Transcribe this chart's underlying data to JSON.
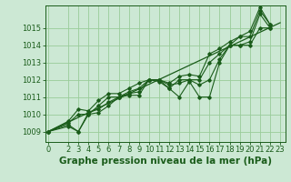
{
  "title": "Graphe pression niveau de la mer (hPa)",
  "bg_color": "#cce8d4",
  "grid_color": "#99cc99",
  "line_color": "#1a5c1a",
  "x_ticks": [
    0,
    2,
    3,
    4,
    5,
    6,
    7,
    8,
    9,
    10,
    11,
    12,
    13,
    14,
    15,
    16,
    17,
    18,
    19,
    20,
    21,
    22,
    23
  ],
  "y_ticks": [
    1009,
    1010,
    1011,
    1012,
    1013,
    1014,
    1015
  ],
  "ylim": [
    1008.4,
    1016.3
  ],
  "xlim": [
    -0.3,
    23.5
  ],
  "series": [
    [
      1009.0,
      null,
      1009.3,
      1009.0,
      1010.0,
      1010.1,
      1010.5,
      1011.0,
      1011.1,
      1011.1,
      1012.0,
      1011.9,
      1011.5,
      1011.0,
      1011.9,
      1011.0,
      1011.0,
      1013.0,
      1014.0,
      1014.0,
      1014.0,
      1015.0,
      1015.0
    ],
    [
      1009.0,
      null,
      1009.4,
      1009.0,
      1010.1,
      1010.3,
      1010.7,
      1011.0,
      1011.2,
      1011.3,
      1012.0,
      1012.0,
      1011.7,
      1011.8,
      1012.0,
      1011.7,
      1012.0,
      1013.2,
      1014.0,
      1014.0,
      1014.2,
      1015.8,
      1015.0
    ],
    [
      1009.0,
      null,
      1009.5,
      1010.0,
      1010.0,
      1010.5,
      1011.0,
      1011.0,
      1011.3,
      1011.5,
      1012.0,
      1012.0,
      1011.5,
      1012.0,
      1012.0,
      1012.0,
      1013.0,
      1013.5,
      1014.0,
      1014.5,
      1014.5,
      1016.0,
      1015.2
    ],
    [
      1009.0,
      null,
      1009.6,
      1010.3,
      1010.2,
      1010.8,
      1011.2,
      1011.2,
      1011.5,
      1011.8,
      1012.0,
      1012.0,
      1011.8,
      1012.2,
      1012.3,
      1012.2,
      1013.5,
      1013.8,
      1014.2,
      1014.5,
      1014.8,
      1016.2,
      1015.2
    ]
  ],
  "trend_line": {
    "x0": 0,
    "x1": 23,
    "y0": 1009.0,
    "y1": 1015.3
  },
  "title_fontsize": 7.5,
  "tick_fontsize": 6.0,
  "title_fontweight": "bold"
}
